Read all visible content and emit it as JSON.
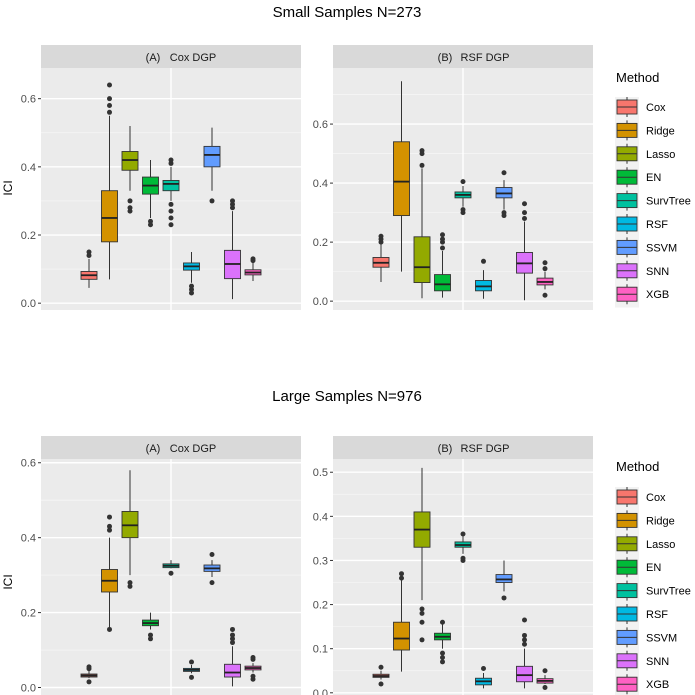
{
  "methods": [
    "Cox",
    "Ridge",
    "Lasso",
    "EN",
    "SurvTree",
    "RSF",
    "SSVM",
    "SNN",
    "XGB"
  ],
  "colors": [
    "#F8766D",
    "#D39200",
    "#93AA00",
    "#00BA38",
    "#00C19F",
    "#00B9E3",
    "#619CFF",
    "#DB72FB",
    "#FF61C3"
  ],
  "legend_title": "Method",
  "ylabel": "ICI",
  "chart_data": [
    {
      "type": "box",
      "title": "Small Samples N=273",
      "strip_label": "(A)",
      "strip_text": "Cox DGP",
      "ylabel": "ICI",
      "yticks": [
        0.0,
        0.2,
        0.4,
        0.6
      ],
      "tick_labels": [
        "0.0",
        "0.2",
        "0.4",
        "0.6"
      ],
      "ylim": [
        -0.02,
        0.69
      ],
      "boxes": [
        {
          "lo": 0.045,
          "q1": 0.07,
          "med": 0.082,
          "q3": 0.093,
          "hi": 0.13,
          "out": [
            0.14,
            0.15
          ]
        },
        {
          "lo": 0.07,
          "q1": 0.18,
          "med": 0.25,
          "q3": 0.33,
          "hi": 0.55,
          "out": [
            0.56,
            0.58,
            0.6,
            0.64
          ]
        },
        {
          "lo": 0.33,
          "q1": 0.39,
          "med": 0.42,
          "q3": 0.445,
          "hi": 0.52,
          "out": [
            0.27,
            0.28,
            0.3
          ]
        },
        {
          "lo": 0.25,
          "q1": 0.32,
          "med": 0.345,
          "q3": 0.37,
          "hi": 0.42,
          "out": [
            0.23,
            0.24
          ]
        },
        {
          "lo": 0.3,
          "q1": 0.33,
          "med": 0.35,
          "q3": 0.36,
          "hi": 0.4,
          "out": [
            0.23,
            0.25,
            0.27,
            0.29,
            0.41,
            0.42
          ]
        },
        {
          "lo": 0.06,
          "q1": 0.097,
          "med": 0.108,
          "q3": 0.118,
          "hi": 0.15,
          "out": [
            0.03,
            0.04,
            0.05
          ]
        },
        {
          "lo": 0.33,
          "q1": 0.4,
          "med": 0.435,
          "q3": 0.46,
          "hi": 0.515,
          "out": [
            0.3
          ]
        },
        {
          "lo": 0.012,
          "q1": 0.072,
          "med": 0.115,
          "q3": 0.155,
          "hi": 0.27,
          "out": [
            0.28,
            0.29,
            0.3
          ]
        },
        {
          "lo": 0.065,
          "q1": 0.083,
          "med": 0.09,
          "q3": 0.098,
          "hi": 0.12,
          "out": [
            0.125,
            0.13
          ]
        }
      ]
    },
    {
      "type": "box",
      "title": "Small Samples N=273",
      "strip_label": "(B)",
      "strip_text": "RSF DGP",
      "yticks": [
        0.0,
        0.2,
        0.4,
        0.6
      ],
      "tick_labels": [
        "0.0",
        "0.2",
        "0.4",
        "0.6"
      ],
      "ylim": [
        -0.03,
        0.79
      ],
      "boxes": [
        {
          "lo": 0.065,
          "q1": 0.115,
          "med": 0.13,
          "q3": 0.148,
          "hi": 0.195,
          "out": [
            0.2,
            0.21,
            0.22
          ]
        },
        {
          "lo": 0.1,
          "q1": 0.29,
          "med": 0.405,
          "q3": 0.54,
          "hi": 0.745,
          "out": []
        },
        {
          "lo": 0.01,
          "q1": 0.063,
          "med": 0.115,
          "q3": 0.218,
          "hi": 0.45,
          "out": [
            0.46,
            0.5,
            0.51
          ]
        },
        {
          "lo": 0.012,
          "q1": 0.035,
          "med": 0.057,
          "q3": 0.09,
          "hi": 0.17,
          "out": [
            0.18,
            0.2,
            0.21,
            0.225
          ]
        },
        {
          "lo": 0.32,
          "q1": 0.35,
          "med": 0.36,
          "q3": 0.37,
          "hi": 0.39,
          "out": [
            0.3,
            0.31,
            0.405
          ]
        },
        {
          "lo": 0.008,
          "q1": 0.035,
          "med": 0.05,
          "q3": 0.07,
          "hi": 0.105,
          "out": [
            0.135
          ]
        },
        {
          "lo": 0.31,
          "q1": 0.35,
          "med": 0.365,
          "q3": 0.385,
          "hi": 0.41,
          "out": [
            0.29,
            0.3,
            0.435
          ]
        },
        {
          "lo": 0.003,
          "q1": 0.095,
          "med": 0.128,
          "q3": 0.165,
          "hi": 0.27,
          "out": [
            0.28,
            0.3,
            0.33
          ]
        },
        {
          "lo": 0.04,
          "q1": 0.055,
          "med": 0.065,
          "q3": 0.078,
          "hi": 0.1,
          "out": [
            0.02,
            0.11,
            0.13
          ]
        }
      ]
    },
    {
      "type": "box",
      "title": "Large Samples N=976",
      "strip_label": "(A)",
      "strip_text": "Cox DGP",
      "yticks": [
        0.0,
        0.2,
        0.4,
        0.6
      ],
      "tick_labels": [
        "0.0",
        "0.2",
        "0.4",
        "0.6"
      ],
      "ylim": [
        -0.02,
        0.61
      ],
      "boxes": [
        {
          "lo": 0.025,
          "q1": 0.028,
          "med": 0.032,
          "q3": 0.036,
          "hi": 0.045,
          "out": [
            0.015,
            0.05,
            0.055
          ]
        },
        {
          "lo": 0.16,
          "q1": 0.255,
          "med": 0.285,
          "q3": 0.315,
          "hi": 0.4,
          "out": [
            0.155,
            0.42,
            0.43,
            0.455
          ]
        },
        {
          "lo": 0.3,
          "q1": 0.4,
          "med": 0.433,
          "q3": 0.47,
          "hi": 0.58,
          "out": [
            0.27,
            0.28
          ]
        },
        {
          "lo": 0.155,
          "q1": 0.165,
          "med": 0.172,
          "q3": 0.18,
          "hi": 0.2,
          "out": [
            0.13,
            0.14
          ]
        },
        {
          "lo": 0.318,
          "q1": 0.32,
          "med": 0.325,
          "q3": 0.33,
          "hi": 0.34,
          "out": [
            0.305
          ]
        },
        {
          "lo": 0.038,
          "q1": 0.043,
          "med": 0.047,
          "q3": 0.051,
          "hi": 0.06,
          "out": [
            0.027,
            0.068
          ]
        },
        {
          "lo": 0.295,
          "q1": 0.31,
          "med": 0.318,
          "q3": 0.327,
          "hi": 0.34,
          "out": [
            0.28,
            0.355
          ]
        },
        {
          "lo": 0.003,
          "q1": 0.028,
          "med": 0.04,
          "q3": 0.062,
          "hi": 0.11,
          "out": [
            0.12,
            0.13,
            0.14,
            0.155
          ]
        },
        {
          "lo": 0.04,
          "q1": 0.047,
          "med": 0.052,
          "q3": 0.057,
          "hi": 0.065,
          "out": [
            0.022,
            0.03,
            0.075,
            0.08
          ]
        }
      ]
    },
    {
      "type": "box",
      "title": "Large Samples N=976",
      "strip_label": "(B)",
      "strip_text": "RSF DGP",
      "yticks": [
        0.0,
        0.1,
        0.2,
        0.3,
        0.4,
        0.5
      ],
      "tick_labels": [
        "0.0",
        "0.1",
        "0.2",
        "0.3",
        "0.4",
        "0.5"
      ],
      "ylim": [
        -0.005,
        0.53
      ],
      "boxes": [
        {
          "lo": 0.03,
          "q1": 0.035,
          "med": 0.038,
          "q3": 0.042,
          "hi": 0.05,
          "out": [
            0.02,
            0.058
          ]
        },
        {
          "lo": 0.048,
          "q1": 0.097,
          "med": 0.123,
          "q3": 0.16,
          "hi": 0.255,
          "out": [
            0.26,
            0.27
          ]
        },
        {
          "lo": 0.21,
          "q1": 0.33,
          "med": 0.37,
          "q3": 0.41,
          "hi": 0.51,
          "out": [
            0.12,
            0.16,
            0.18,
            0.19
          ]
        },
        {
          "lo": 0.1,
          "q1": 0.12,
          "med": 0.127,
          "q3": 0.135,
          "hi": 0.155,
          "out": [
            0.07,
            0.08,
            0.09,
            0.16
          ]
        },
        {
          "lo": 0.315,
          "q1": 0.33,
          "med": 0.335,
          "q3": 0.342,
          "hi": 0.355,
          "out": [
            0.3,
            0.305,
            0.36
          ]
        },
        {
          "lo": 0.01,
          "q1": 0.018,
          "med": 0.026,
          "q3": 0.033,
          "hi": 0.045,
          "out": [
            0.055
          ]
        },
        {
          "lo": 0.23,
          "q1": 0.25,
          "med": 0.257,
          "q3": 0.268,
          "hi": 0.3,
          "out": [
            0.215
          ]
        },
        {
          "lo": 0.01,
          "q1": 0.025,
          "med": 0.04,
          "q3": 0.06,
          "hi": 0.1,
          "out": [
            0.11,
            0.12,
            0.13,
            0.165
          ]
        },
        {
          "lo": 0.02,
          "q1": 0.022,
          "med": 0.027,
          "q3": 0.032,
          "hi": 0.04,
          "out": [
            0.012,
            0.05
          ]
        }
      ]
    }
  ],
  "titles": {
    "top": "Small Samples N=273",
    "bottom": "Large Samples N=976"
  }
}
